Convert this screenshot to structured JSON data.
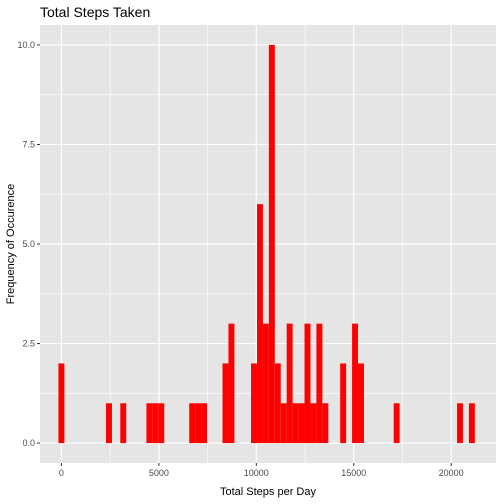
{
  "chart_data": {
    "type": "bar",
    "title": "Total Steps Taken",
    "xlabel": "Total Steps per Day",
    "ylabel": "Frequency of Occurence",
    "x_ticks": [
      0,
      5000,
      10000,
      15000,
      20000
    ],
    "x_tick_labels": [
      "0",
      "5000",
      "10000",
      "15000",
      "20000"
    ],
    "y_ticks": [
      0,
      2.5,
      5,
      7.5,
      10
    ],
    "y_tick_labels": [
      "0.0",
      "2.5",
      "5.0",
      "7.5",
      "10.0"
    ],
    "xlim": [
      -1100,
      22300
    ],
    "ylim": [
      -0.5,
      10.5
    ],
    "bin_width": 305,
    "bar_color": "#ff0000",
    "panel_background": "#e5e5e5",
    "grid_color": "#ffffff",
    "grid": true,
    "legend": "none",
    "bins": [
      {
        "x": 0,
        "count": 2
      },
      {
        "x": 2440,
        "count": 1
      },
      {
        "x": 3172,
        "count": 1
      },
      {
        "x": 4514,
        "count": 1
      },
      {
        "x": 4819,
        "count": 1
      },
      {
        "x": 5124,
        "count": 1
      },
      {
        "x": 6710,
        "count": 1
      },
      {
        "x": 7015,
        "count": 1
      },
      {
        "x": 7320,
        "count": 1
      },
      {
        "x": 8418,
        "count": 2
      },
      {
        "x": 8723,
        "count": 3
      },
      {
        "x": 9882,
        "count": 2
      },
      {
        "x": 10187,
        "count": 6
      },
      {
        "x": 10492,
        "count": 3
      },
      {
        "x": 10797,
        "count": 10
      },
      {
        "x": 11102,
        "count": 2
      },
      {
        "x": 11407,
        "count": 1
      },
      {
        "x": 11712,
        "count": 3
      },
      {
        "x": 12017,
        "count": 1
      },
      {
        "x": 12322,
        "count": 1
      },
      {
        "x": 12627,
        "count": 3
      },
      {
        "x": 12932,
        "count": 1
      },
      {
        "x": 13237,
        "count": 3
      },
      {
        "x": 13542,
        "count": 1
      },
      {
        "x": 14457,
        "count": 2
      },
      {
        "x": 15067,
        "count": 3
      },
      {
        "x": 15372,
        "count": 2
      },
      {
        "x": 17202,
        "count": 1
      },
      {
        "x": 20452,
        "count": 1
      },
      {
        "x": 21062,
        "count": 1
      }
    ]
  }
}
